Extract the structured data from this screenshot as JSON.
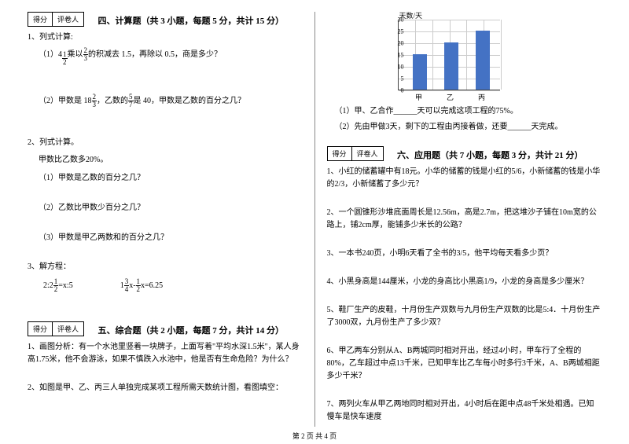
{
  "scorebox": {
    "score": "得分",
    "reviewer": "评卷人"
  },
  "left": {
    "sec4": {
      "title": "四、计算题（共 3 小题，每题 5 分，共计 15 分）",
      "q1": "1、列式计算:",
      "q1_1a": "（1）4",
      "q1_1b": "乘以",
      "q1_1c": "的积减去 1.5，再除以 0.5，商是多少？",
      "f1n": "1",
      "f1d": "2",
      "f2n": "2",
      "f2d": "3",
      "q1_2a": "（2）甲数是 18",
      "q1_2b": "，乙数的",
      "q1_2c": "是 40，甲数是乙数的百分之几？",
      "f3n": "2",
      "f3d": "3",
      "f4n": "5",
      "f4d": "7",
      "q2": "2、列式计算。",
      "q2s": "甲数比乙数多20%。",
      "q2_1": "（1）甲数是乙数的百分之几？",
      "q2_2": "（2）乙数比甲数少百分之几？",
      "q2_3": "（3）甲数是甲乙两数和的百分之几？",
      "q3": "3、解方程：",
      "eq1a": "2:2",
      "eq1b": "=x:5",
      "ef1n": "1",
      "ef1d": "2",
      "eq2a": "1",
      "eq2b": "x-",
      "eq2c": "x=6.25",
      "ef2n": "3",
      "ef2d": "4",
      "ef3n": "1",
      "ef3d": "2"
    },
    "sec5": {
      "title": "五、综合题（共 2 小题，每题 7 分，共计 14 分）",
      "q1": "1、画图分析：有一个水池里竖着一块牌子，上面写着\"平均水深1.5米\"，某人身高1.75米，他不会游泳，如果不慎跌入水池中，他是否有生命危险？为什么？",
      "q2": "2、如图是甲、乙、丙三人单独完成某项工程所需天数统计图，看图填空："
    }
  },
  "right": {
    "chart": {
      "ylabel": "天数/天",
      "ymax": 30,
      "ystep": 5,
      "yticks": [
        "0",
        "5",
        "10",
        "15",
        "20",
        "25",
        "30"
      ],
      "categories": [
        "甲",
        "乙",
        "丙"
      ],
      "values": [
        15,
        20,
        25
      ],
      "bar_color": "#4472c4",
      "grid_color": "#cccccc"
    },
    "q5_1": "（1）甲、乙合作______天可以完成这项工程的75%。",
    "q5_2": "（2）先由甲做3天，剩下的工程由丙接着做，还要______天完成。",
    "sec6": {
      "title": "六、应用题（共 7 小题，每题 3 分，共计 21 分）",
      "q1": "1、小红的储蓄罐中有18元。小华的储蓄的钱是小红的5/6，小新储蓄的钱是小华的2/3，小新储蓄了多少元？",
      "q2": "2、一个圆锥形沙堆底面周长是12.56m，高是2.7m，把这堆沙子铺在10m宽的公路上，铺2cm厚，能铺多少米长的公路？",
      "q3": "3、一本书240页，小明6天看了全书的3/5，他平均每天看多少页？",
      "q4": "4、小黑身高是144厘米，小龙的身高比小黑高1/9，小龙的身高是多少厘米？",
      "q5": "5、鞋厂生产的皮鞋，十月份生产双数与九月份生产双数的比是5:4．十月份生产了3000双，九月份生产了多少双？",
      "q6": "6、甲乙两车分别从A、B两城同时相对开出，经过4小时，甲车行了全程的80%，乙车超过中点13千米，已知甲车比乙车每小时多行3千米，A、B两城相距多少千米？",
      "q7": "7、两列火车从甲乙两地同时相对开出，4小时后在距中点48千米处相遇。已知慢车是快车速度"
    }
  },
  "footer": "第 2 页 共 4 页"
}
